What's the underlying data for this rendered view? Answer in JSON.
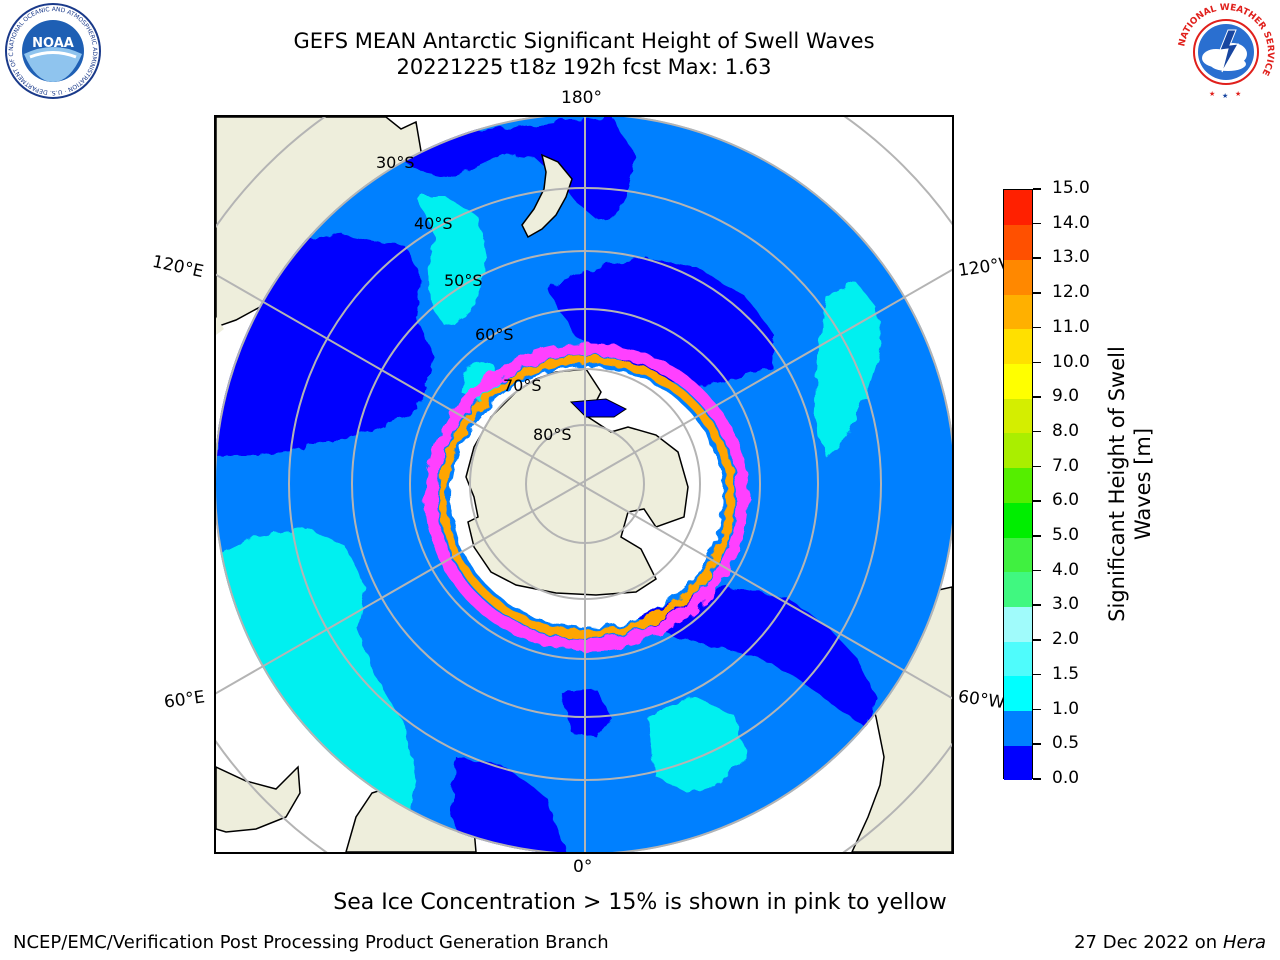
{
  "header": {
    "title_line1": "GEFS MEAN Antarctic Significant Height of Swell Waves",
    "title_line2": "20221225 t18z 192h fcst   Max: 1.63"
  },
  "logos": {
    "left": {
      "name": "noaa-logo",
      "text": "NOAA",
      "ring_text": "NATIONAL OCEANIC AND ATMOSPHERIC ADMINISTRATION · U.S. DEPARTMENT OF COMMERCE"
    },
    "right": {
      "name": "nws-logo",
      "ring_text": "NATIONAL WEATHER SERVICE"
    }
  },
  "map": {
    "projection": "south-polar-stereographic",
    "longitude_labels": {
      "top": "180°",
      "bottom": "0°",
      "upper_left": "120°E",
      "upper_right": "120°W",
      "lower_left": "60°E",
      "lower_right": "60°W"
    },
    "latitude_labels": [
      "30°S",
      "40°S",
      "50°S",
      "60°S",
      "70°S",
      "80°S"
    ],
    "colors": {
      "land": "#eeeedc",
      "deep_blue": "#0000ff",
      "blue": "#0080ff",
      "cyan": "#00f0f0",
      "light_cyan": "#4ff8f8",
      "ice_white": "#ffffff",
      "ice_pink": "#ff40ff",
      "ice_orange": "#ffa500",
      "ice_yellow": "#ffe060",
      "grid": "#b4b4b4"
    }
  },
  "colorbar": {
    "label": "Significant Height of Swell Waves [m]",
    "label_line1": "Significant Height of Swell",
    "label_line2": "Waves [m]",
    "ticks": [
      "0.0",
      "0.5",
      "1.0",
      "1.5",
      "2.0",
      "3.0",
      "4.0",
      "5.0",
      "6.0",
      "7.0",
      "8.0",
      "9.0",
      "10.0",
      "11.0",
      "12.0",
      "13.0",
      "14.0",
      "15.0"
    ],
    "colors": [
      "#0000ff",
      "#0080ff",
      "#00ffff",
      "#4ffcfc",
      "#a0fbfb",
      "#40f880",
      "#40f040",
      "#00ee00",
      "#55ee00",
      "#aaee00",
      "#d4ee00",
      "#ffff00",
      "#ffe000",
      "#ffb000",
      "#ff8800",
      "#ff5000",
      "#ff2000"
    ]
  },
  "footer": {
    "note": "Sea Ice Concentration > 15% is shown in pink to yellow",
    "credit": "NCEP/EMC/Verification Post Processing Product Generation Branch",
    "date_prefix": "27 Dec 2022 on",
    "date_host": "Hera"
  }
}
